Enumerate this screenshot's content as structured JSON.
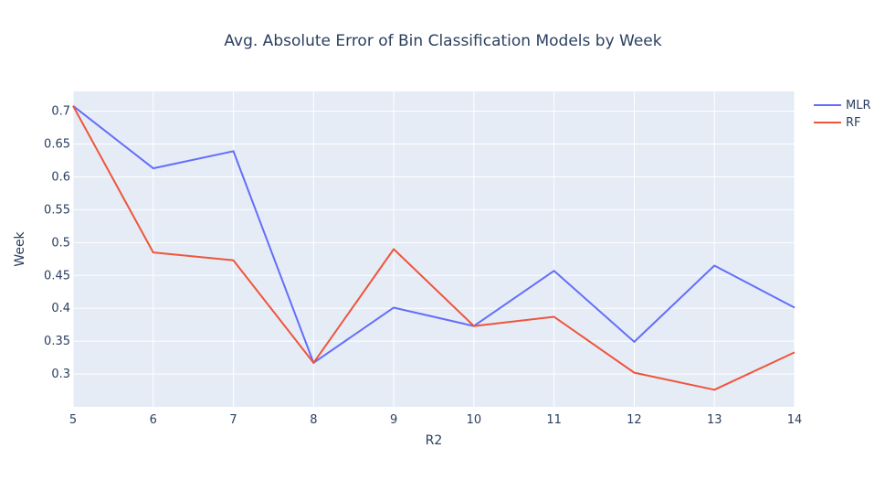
{
  "chart_data": {
    "type": "line",
    "title": "Avg. Absolute Error of Bin Classification Models by Week",
    "xlabel": "R2",
    "ylabel": "Week",
    "x": [
      5,
      6,
      7,
      8,
      9,
      10,
      11,
      12,
      13,
      14
    ],
    "xlim": [
      5,
      14
    ],
    "ylim": [
      0.25,
      0.73
    ],
    "x_ticks": [
      "5",
      "6",
      "7",
      "8",
      "9",
      "10",
      "11",
      "12",
      "13",
      "14"
    ],
    "y_ticks": [
      "0.3",
      "0.35",
      "0.4",
      "0.45",
      "0.5",
      "0.55",
      "0.6",
      "0.65",
      "0.7"
    ],
    "grid": true,
    "legend_position": "top-right",
    "series": [
      {
        "name": "MLR",
        "color": "#636efa",
        "values": [
          0.708,
          0.613,
          0.639,
          0.317,
          0.401,
          0.373,
          0.457,
          0.349,
          0.465,
          0.401
        ]
      },
      {
        "name": "RF",
        "color": "#ef553b",
        "values": [
          0.708,
          0.485,
          0.473,
          0.317,
          0.49,
          0.373,
          0.387,
          0.302,
          0.276,
          0.333
        ]
      }
    ]
  }
}
